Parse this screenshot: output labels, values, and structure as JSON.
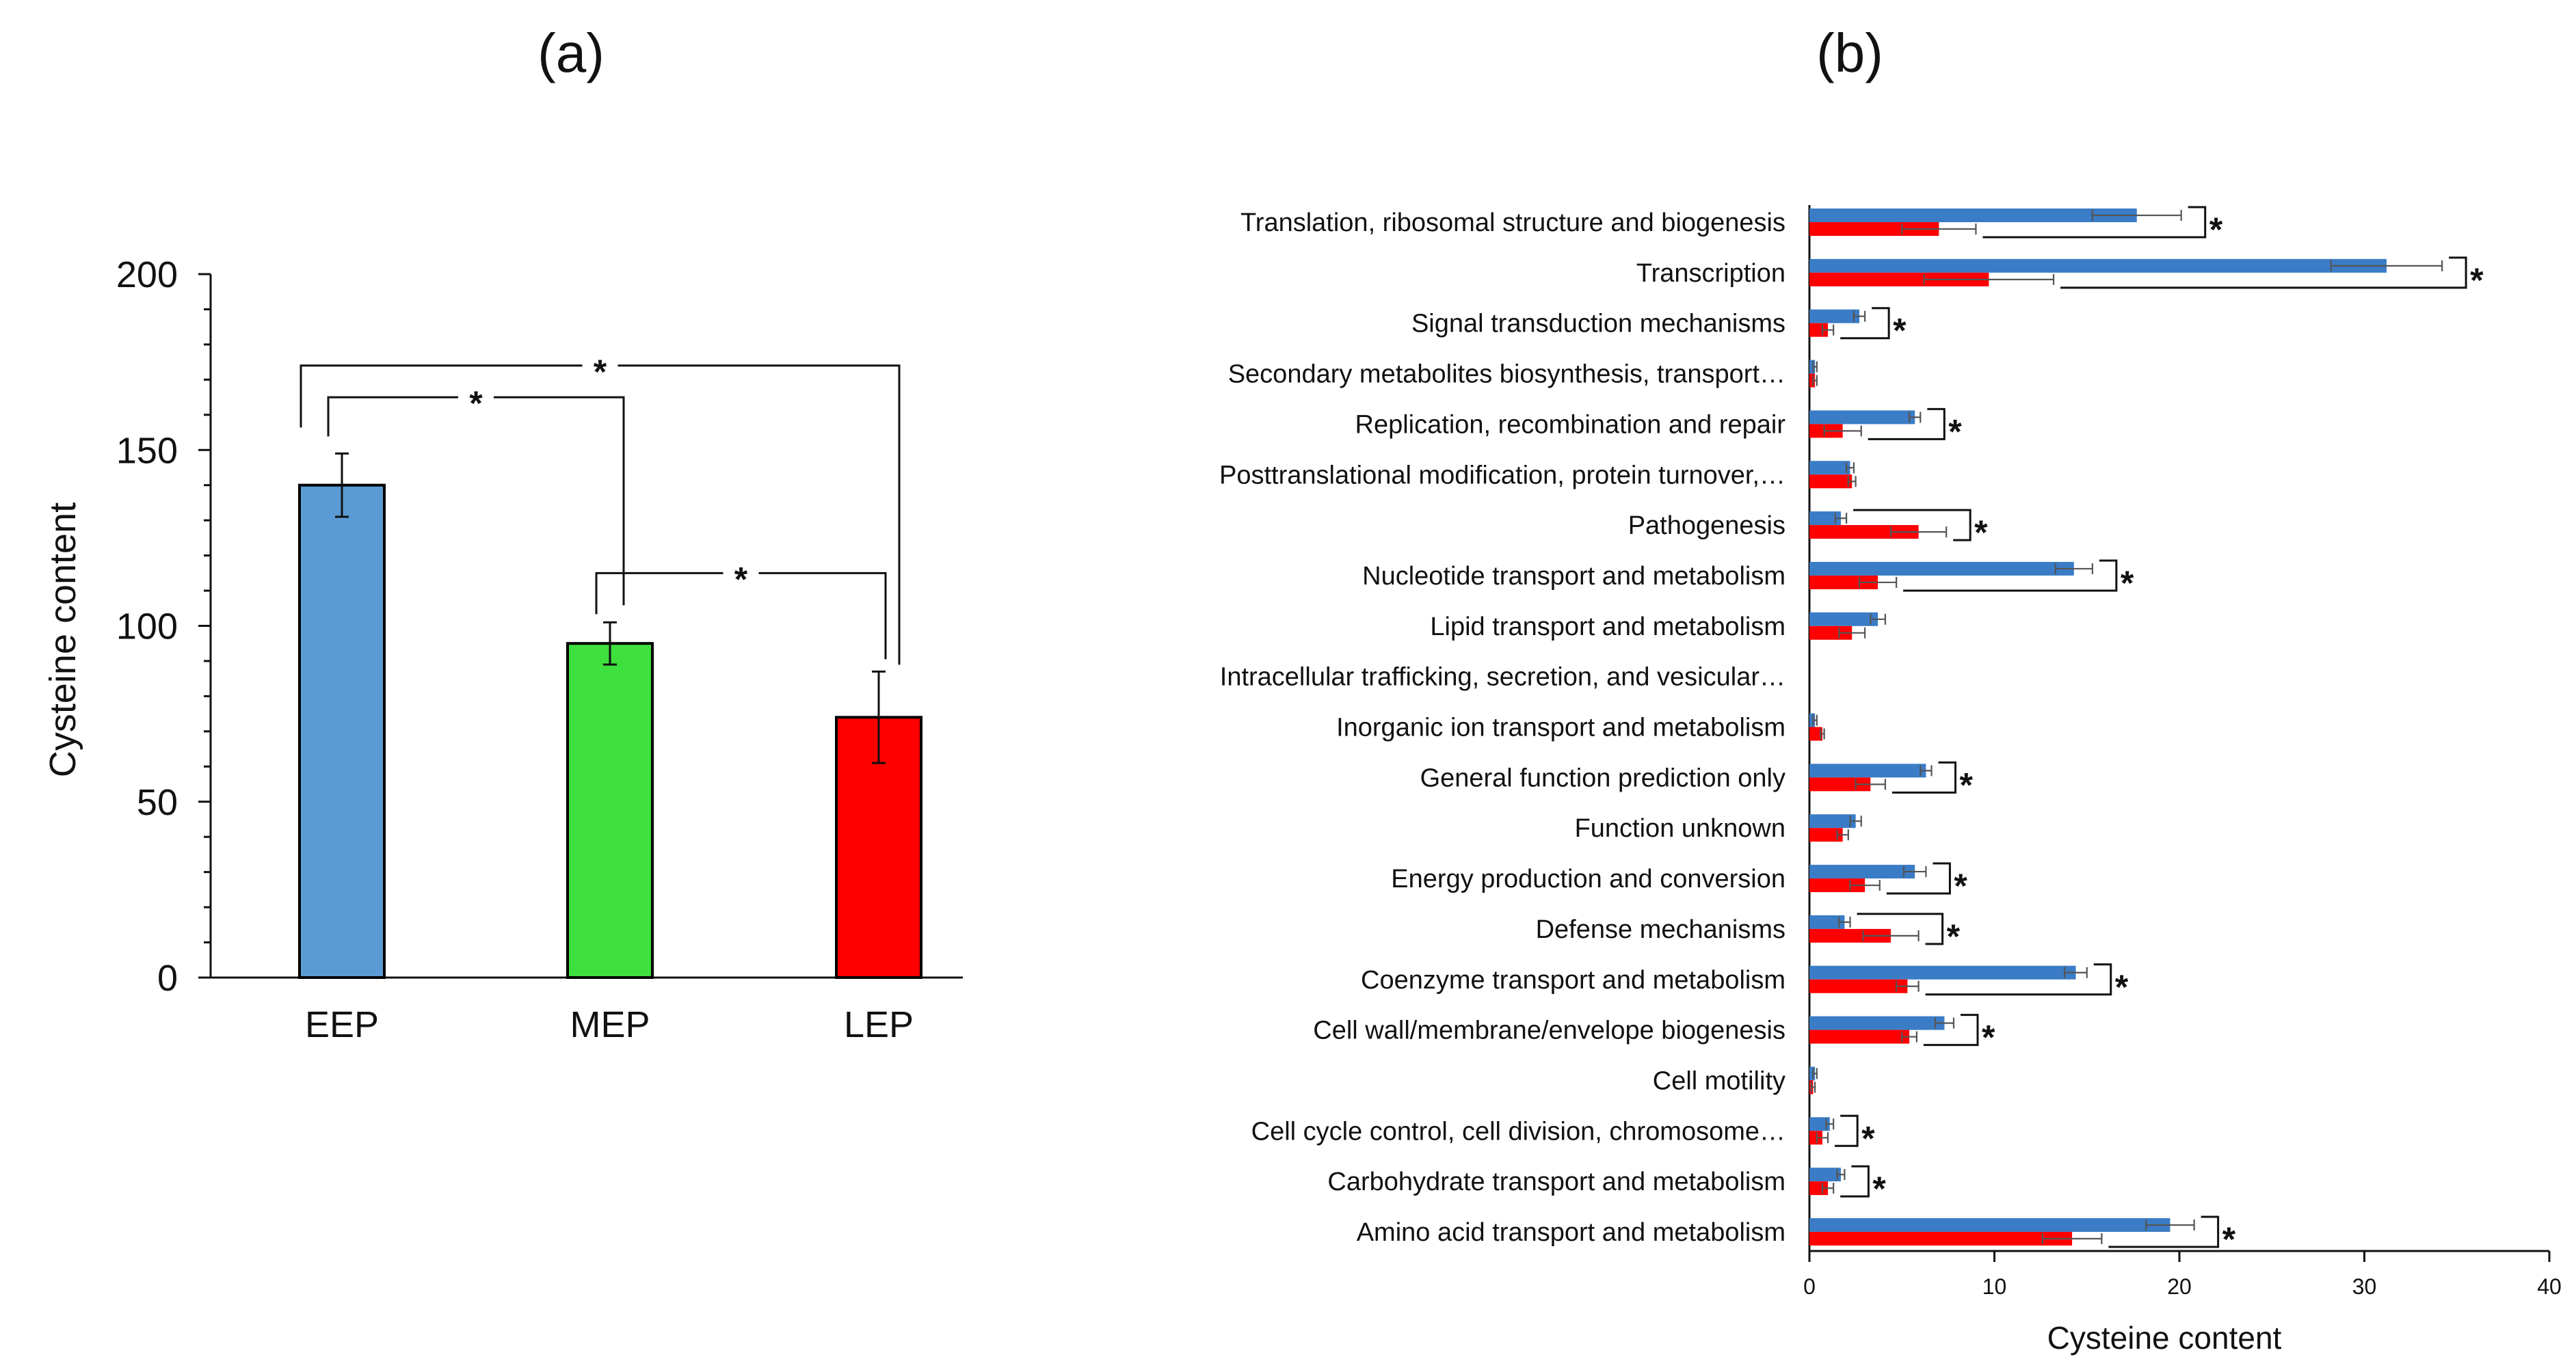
{
  "chart_data": [
    {
      "panel": "(a)",
      "type": "bar",
      "title": "",
      "xlabel": "",
      "ylabel": "Cysteine  content",
      "ylim": [
        0,
        200
      ],
      "yticks": [
        0,
        50,
        100,
        150,
        200
      ],
      "categories": [
        "EEP",
        "MEP",
        "LEP"
      ],
      "values": [
        140,
        95,
        74
      ],
      "errors": [
        9,
        6,
        13
      ],
      "colors": [
        "#5b9bd5",
        "#3ee03e",
        "#ff0000"
      ],
      "significance": [
        {
          "from": "EEP",
          "to": "MEP",
          "label": "*"
        },
        {
          "from": "MEP",
          "to": "LEP",
          "label": "*"
        },
        {
          "from": "EEP",
          "to": "LEP",
          "label": "*"
        }
      ]
    },
    {
      "panel": "(b)",
      "type": "bar",
      "orientation": "horizontal",
      "title": "",
      "xlabel": "Cysteine content",
      "ylabel": "",
      "xlim": [
        0,
        40
      ],
      "xticks": [
        0,
        10,
        20,
        30,
        40
      ],
      "categories": [
        "Translation, ribosomal structure and biogenesis",
        "Transcription",
        "Signal transduction mechanisms",
        "Secondary metabolites biosynthesis, transport…",
        "Replication, recombination and repair",
        "Posttranslational modification, protein turnover,…",
        "Pathogenesis",
        "Nucleotide transport and metabolism",
        "Lipid transport and metabolism",
        "Intracellular trafficking, secretion, and vesicular…",
        "Inorganic ion transport and metabolism",
        "General function prediction only",
        "Function unknown",
        "Energy production and conversion",
        "Defense mechanisms",
        "Coenzyme transport and metabolism",
        "Cell wall/membrane/envelope biogenesis",
        "Cell motility",
        "Cell cycle control, cell division, chromosome…",
        "Carbohydrate transport and metabolism",
        "Amino acid transport and metabolism"
      ],
      "series": [
        {
          "name": "EEP",
          "color": "#3a7cc6",
          "values": [
            17.7,
            31.2,
            2.7,
            0.3,
            5.7,
            2.2,
            1.7,
            14.3,
            3.7,
            0.0,
            0.3,
            6.3,
            2.5,
            5.7,
            1.9,
            14.4,
            7.3,
            0.3,
            1.1,
            1.7,
            19.5
          ],
          "errors": [
            2.4,
            3.0,
            0.3,
            0.1,
            0.3,
            0.2,
            0.3,
            1.0,
            0.4,
            0.0,
            0.1,
            0.3,
            0.3,
            0.6,
            0.3,
            0.6,
            0.5,
            0.1,
            0.2,
            0.2,
            1.3
          ]
        },
        {
          "name": "LEP",
          "color": "#ff0000",
          "values": [
            7.0,
            9.7,
            1.0,
            0.3,
            1.8,
            2.3,
            5.9,
            3.7,
            2.3,
            0.0,
            0.7,
            3.3,
            1.8,
            3.0,
            4.4,
            5.3,
            5.4,
            0.2,
            0.7,
            1.0,
            14.2
          ],
          "errors": [
            2.0,
            3.5,
            0.3,
            0.1,
            1.0,
            0.2,
            1.5,
            1.0,
            0.7,
            0.0,
            0.1,
            0.8,
            0.3,
            0.8,
            1.5,
            0.6,
            0.4,
            0.1,
            0.3,
            0.3,
            1.6
          ]
        }
      ],
      "significance": [
        true,
        true,
        true,
        false,
        true,
        false,
        true,
        true,
        false,
        false,
        false,
        true,
        false,
        true,
        true,
        true,
        true,
        false,
        true,
        true,
        true
      ],
      "significance_label": "*"
    }
  ]
}
